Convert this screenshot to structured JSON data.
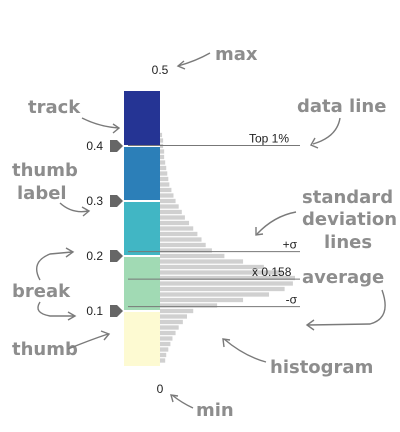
{
  "annotations": {
    "max": "max",
    "track": "track",
    "data_line": "data line",
    "thumb_label_1": "thumb",
    "thumb_label_2": "label",
    "standard_deviation_1": "standard",
    "standard_deviation_2": "deviation",
    "standard_deviation_3": "lines",
    "break": "break",
    "average": "average",
    "thumb": "thumb",
    "histogram": "histogram",
    "min": "min"
  },
  "slider": {
    "min_label": "0",
    "max_label": "0.5",
    "ticks": [
      {
        "value": 0.1,
        "label": "0.1"
      },
      {
        "value": 0.2,
        "label": "0.2"
      },
      {
        "value": 0.3,
        "label": "0.3"
      },
      {
        "value": 0.4,
        "label": "0.4"
      }
    ],
    "stops": [
      {
        "from": 0.0,
        "to": 0.1,
        "color": "#fdfad2"
      },
      {
        "from": 0.1,
        "to": 0.2,
        "color": "#a1dab4"
      },
      {
        "from": 0.2,
        "to": 0.3,
        "color": "#41b6c4"
      },
      {
        "from": 0.3,
        "to": 0.4,
        "color": "#2c7fb8"
      },
      {
        "from": 0.4,
        "to": 0.5,
        "color": "#253494"
      }
    ]
  },
  "stat_lines": {
    "top_percent": {
      "value": 0.401,
      "label": "Top 1%"
    },
    "plus_sigma": {
      "value": 0.208,
      "label": "+σ"
    },
    "average": {
      "value": 0.158,
      "label": "x̄ 0.158"
    },
    "minus_sigma": {
      "value": 0.108,
      "label": "-σ"
    }
  },
  "colors": {
    "annotation": "#8d8d8d",
    "thumb": "#666666",
    "histogram": "#d0d0d0"
  },
  "icons": {
    "thumb": "pentagon-thumb-icon",
    "arrow": "curved-arrow-icon"
  },
  "chart_data": {
    "type": "bar",
    "orientation": "horizontal",
    "x": [
      0.01,
      0.02,
      0.03,
      0.04,
      0.05,
      0.06,
      0.07,
      0.08,
      0.09,
      0.1,
      0.11,
      0.12,
      0.13,
      0.14,
      0.15,
      0.16,
      0.17,
      0.18,
      0.19,
      0.2,
      0.21,
      0.22,
      0.23,
      0.24,
      0.25,
      0.26,
      0.27,
      0.28,
      0.29,
      0.3,
      0.31,
      0.32,
      0.33,
      0.34,
      0.35,
      0.36,
      0.37,
      0.38,
      0.39,
      0.4,
      0.41,
      0.42
    ],
    "values": [
      5,
      6,
      8,
      10,
      12,
      15,
      18,
      22,
      26,
      32,
      55,
      80,
      105,
      120,
      128,
      130,
      118,
      100,
      80,
      62,
      50,
      44,
      40,
      36,
      32,
      28,
      24,
      21,
      18,
      15,
      13,
      11,
      9,
      8,
      7,
      6,
      5,
      4,
      4,
      3,
      3,
      2
    ],
    "ylim": [
      0,
      0.5
    ],
    "grid": false
  }
}
